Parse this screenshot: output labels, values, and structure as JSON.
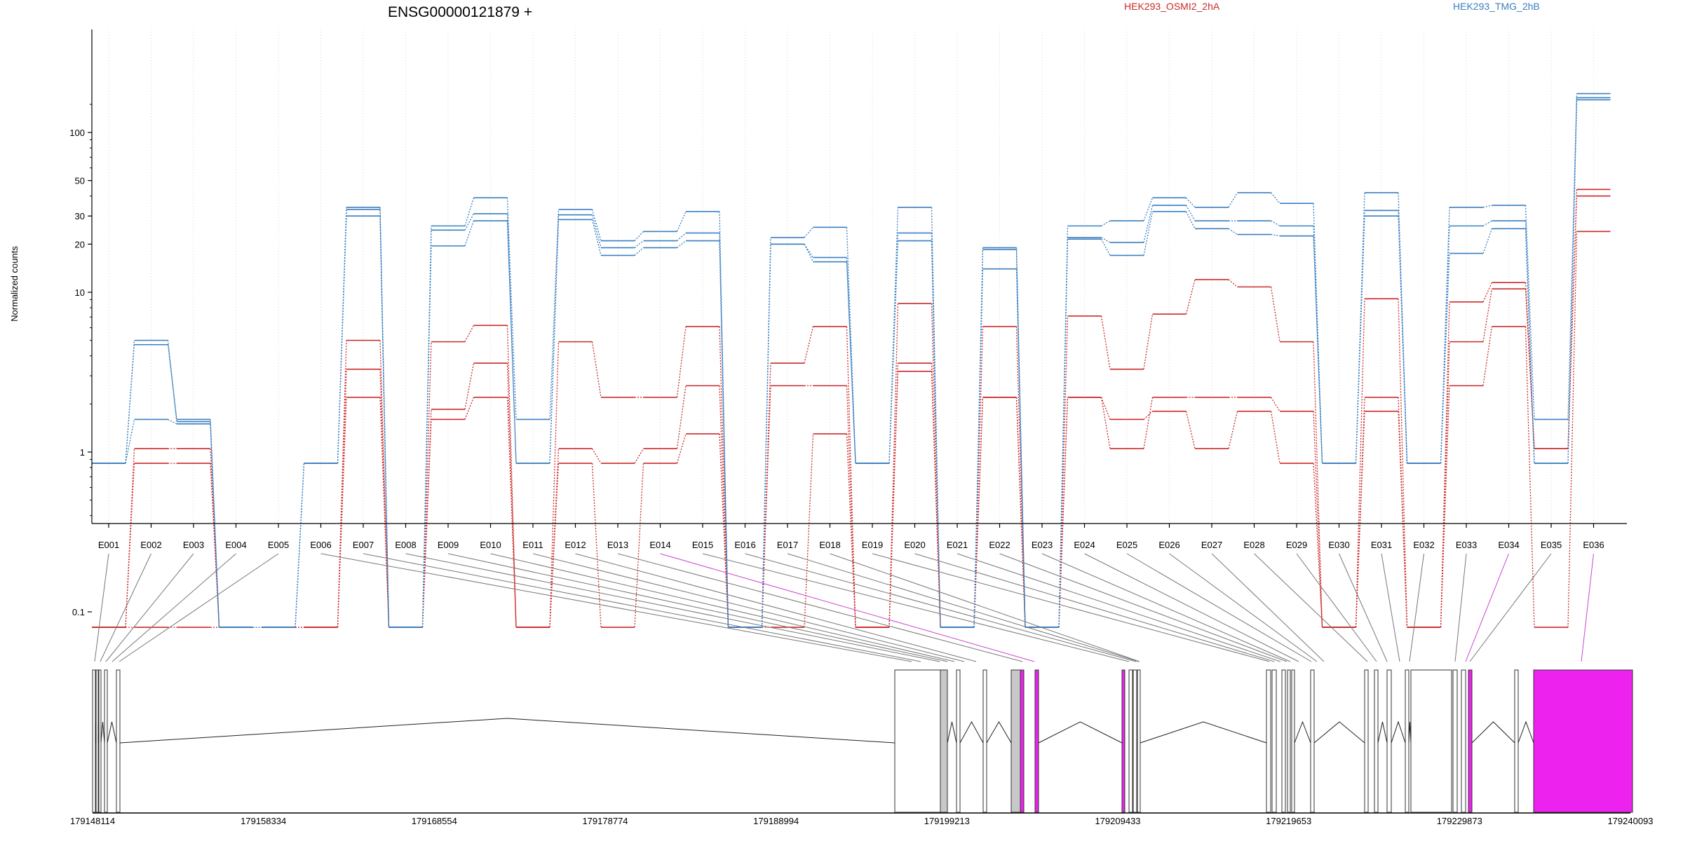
{
  "chart_data": {
    "type": "line",
    "title": "ENSG00000121879 +",
    "ylabel": "Normalized counts",
    "xlabel": "",
    "y_scale": "log",
    "y_ticks": [
      {
        "value": 0.1,
        "label": "0.1"
      },
      {
        "value": 1,
        "label": "1"
      },
      {
        "value": 10,
        "label": "10"
      },
      {
        "value": 20,
        "label": "20"
      },
      {
        "value": 30,
        "label": "30"
      },
      {
        "value": 50,
        "label": "50"
      },
      {
        "value": 100,
        "label": "100"
      }
    ],
    "ylim": [
      0.08,
      190
    ],
    "grid": "vertical dotted lines at each exon",
    "legend": [
      {
        "name": "HEK293_OSMI2_2hA",
        "color": "#cc2a2a",
        "position": "top-center"
      },
      {
        "name": "HEK293_TMG_2hB",
        "color": "#3a7fc1",
        "position": "top-right"
      }
    ],
    "categories": [
      "E001",
      "E002",
      "E003",
      "E004",
      "E005",
      "E006",
      "E007",
      "E008",
      "E009",
      "E010",
      "E011",
      "E012",
      "E013",
      "E014",
      "E015",
      "E016",
      "E017",
      "E018",
      "E019",
      "E020",
      "E021",
      "E022",
      "E023",
      "E024",
      "E025",
      "E026",
      "E027",
      "E028",
      "E029",
      "E030",
      "E031",
      "E032",
      "E033",
      "E034",
      "E035",
      "E036"
    ],
    "series": [
      {
        "group": "HEK293_OSMI2_2hA",
        "color": "#cc2a2a",
        "values": [
          0.08,
          1.05,
          1.05,
          0.08,
          0.08,
          0.08,
          5.0,
          0.08,
          4.9,
          6.2,
          0.08,
          4.9,
          2.2,
          2.2,
          6.1,
          0.08,
          3.6,
          6.1,
          0.08,
          8.5,
          0.08,
          6.1,
          0.08,
          7.1,
          3.3,
          7.3,
          12.0,
          10.8,
          4.9,
          0.08,
          9.1,
          0.08,
          8.7,
          11.5,
          1.05,
          44.0
        ]
      },
      {
        "group": "HEK293_OSMI2_2hA",
        "color": "#cc2a2a",
        "values": [
          0.08,
          0.85,
          0.85,
          0.08,
          0.08,
          0.08,
          3.3,
          0.08,
          1.6,
          2.2,
          0.08,
          1.05,
          0.85,
          1.05,
          2.6,
          0.08,
          2.6,
          2.6,
          0.08,
          3.6,
          0.08,
          2.2,
          0.08,
          2.2,
          1.05,
          2.2,
          2.2,
          2.2,
          1.8,
          0.08,
          2.2,
          0.08,
          4.9,
          10.5,
          1.05,
          40.0
        ]
      },
      {
        "group": "HEK293_OSMI2_2hA",
        "color": "#cc2a2a",
        "values": [
          0.08,
          0.08,
          0.08,
          0.08,
          0.08,
          0.08,
          2.2,
          0.08,
          1.85,
          3.6,
          0.08,
          0.85,
          0.08,
          0.85,
          1.3,
          0.08,
          0.08,
          1.3,
          0.08,
          3.2,
          0.08,
          2.2,
          0.08,
          2.2,
          1.6,
          1.8,
          1.05,
          1.8,
          0.85,
          0.08,
          1.8,
          0.08,
          2.6,
          6.1,
          0.08,
          24.0
        ]
      },
      {
        "group": "HEK293_TMG_2hB",
        "color": "#3a7fc1",
        "values": [
          0.85,
          5.0,
          1.6,
          0.08,
          0.08,
          0.85,
          34.0,
          0.08,
          26.0,
          39.0,
          1.6,
          33.0,
          21.0,
          24.0,
          32.0,
          0.08,
          22.0,
          25.5,
          0.85,
          34.0,
          0.08,
          19.0,
          0.08,
          26.0,
          28.0,
          39.0,
          34.0,
          42.0,
          36.0,
          0.85,
          42.0,
          0.85,
          34.0,
          35.0,
          1.6,
          175.0
        ]
      },
      {
        "group": "HEK293_TMG_2hB",
        "color": "#3a7fc1",
        "values": [
          0.85,
          4.7,
          1.55,
          0.08,
          0.08,
          0.85,
          33.0,
          0.08,
          24.5,
          31.0,
          0.85,
          30.5,
          19.0,
          21.0,
          23.5,
          0.08,
          20.0,
          16.5,
          0.85,
          23.5,
          0.08,
          18.5,
          0.08,
          22.0,
          20.5,
          35.0,
          28.0,
          28.0,
          26.0,
          0.85,
          32.5,
          0.85,
          26.0,
          28.0,
          0.85,
          165.0
        ]
      },
      {
        "group": "HEK293_TMG_2hB",
        "color": "#3a7fc1",
        "values": [
          0.85,
          1.6,
          1.5,
          0.08,
          0.08,
          0.85,
          30.0,
          0.08,
          19.5,
          28.0,
          0.85,
          28.5,
          17.0,
          19.0,
          21.0,
          0.08,
          20.0,
          15.5,
          0.85,
          21.0,
          0.08,
          14.0,
          0.08,
          21.5,
          17.0,
          32.0,
          25.0,
          23.0,
          22.5,
          0.85,
          30.0,
          0.85,
          17.5,
          25.0,
          0.85,
          160.0
        ]
      }
    ],
    "gene_model": {
      "coordinate_labels": [
        "179148114",
        "179158334",
        "179168554",
        "179178774",
        "179188994",
        "179199213",
        "179209433",
        "179219653",
        "179229873",
        "179240093"
      ],
      "exon_block_colors": {
        "default": "#ffffff",
        "noncoding": "#c8c8c8",
        "highlighted": "#ee22ee"
      },
      "highlighted_exons": [
        "E014",
        "E034",
        "E036"
      ]
    }
  }
}
